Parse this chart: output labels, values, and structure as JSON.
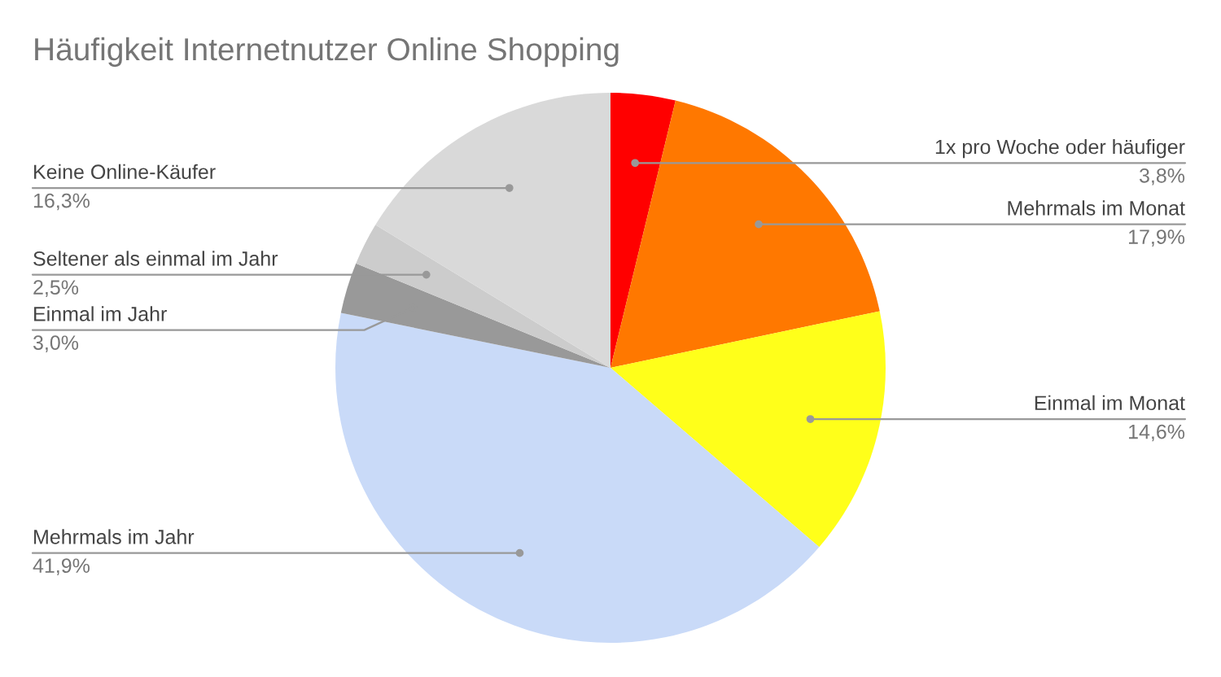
{
  "chart_data": {
    "type": "pie",
    "title": "Häufigkeit Internetnutzer Online Shopping",
    "categories": [
      "1x pro Woche oder häufiger",
      "Mehrmals im Monat",
      "Einmal im Monat",
      "Mehrmals im Jahr",
      "Einmal im Jahr",
      "Seltener als einmal im Jahr",
      "Keine Online-Käufer"
    ],
    "values": [
      3.8,
      17.9,
      14.6,
      41.9,
      3.0,
      2.5,
      16.3
    ],
    "value_labels": [
      "3,8%",
      "17,9%",
      "14,6%",
      "41,9%",
      "3,0%",
      "2,5%",
      "16,3%"
    ],
    "colors": [
      "#ff0000",
      "#ff7800",
      "#ffff1a",
      "#c9daf8",
      "#999999",
      "#cccccc",
      "#d9d9d9"
    ],
    "legend": false
  }
}
